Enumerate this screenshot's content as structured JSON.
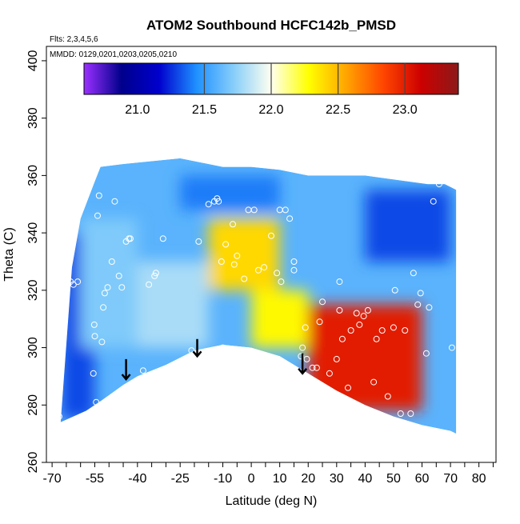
{
  "chart_data": {
    "type": "heatmap",
    "title": "ATOM2 Southbound HCFC142b_PMSD",
    "subtitle_flights": "Flts: 2,3,4,5,6",
    "subtitle_dates": "MMDD: 0129,0201,0203,0205,0210",
    "xlabel": "Latitude (deg N)",
    "ylabel": "Theta (C)",
    "xlim": [
      -72,
      86
    ],
    "ylim": [
      260,
      405
    ],
    "x_ticks": [
      -70,
      -65,
      -60,
      -55,
      -50,
      -45,
      -40,
      -35,
      -30,
      -25,
      -20,
      -15,
      -10,
      -5,
      0,
      5,
      10,
      15,
      20,
      25,
      30,
      35,
      40,
      45,
      50,
      55,
      60,
      65,
      70,
      75,
      80,
      85
    ],
    "x_tick_labels": [
      "-70",
      "",
      "",
      "-55",
      "",
      "",
      "-40",
      "",
      "",
      "-25",
      "",
      "",
      "-10",
      "",
      "0",
      "",
      "10",
      "",
      "20",
      "",
      "30",
      "",
      "40",
      "",
      "50",
      "",
      "60",
      "",
      "70",
      "",
      "80",
      ""
    ],
    "y_ticks": [
      260,
      280,
      300,
      320,
      340,
      360,
      380,
      400
    ],
    "y_tick_labels": [
      "260",
      "280",
      "300",
      "320",
      "340",
      "360",
      "380",
      "400"
    ],
    "colorbar": {
      "range": [
        20.6,
        23.4
      ],
      "ticks": [
        21.0,
        21.5,
        22.0,
        22.5,
        23.0
      ],
      "tick_labels": [
        "21.0",
        "21.5",
        "22.0",
        "22.5",
        "23.0"
      ],
      "divider_values": [
        21.5,
        22.0,
        22.5,
        23.0
      ],
      "colors": [
        "#9b30ff",
        "#00008b",
        "#0000cd",
        "#1e90ff",
        "#87cefa",
        "#fffff0",
        "#ffff00",
        "#ffa500",
        "#ff4500",
        "#cd0000",
        "#8b1a1a"
      ]
    },
    "field_regions": [
      {
        "x": [
          -67,
          -55
        ],
        "y": [
          275,
          340
        ],
        "value": 21.3
      },
      {
        "x": [
          -60,
          -40
        ],
        "y": [
          300,
          345
        ],
        "value": 21.7
      },
      {
        "x": [
          -40,
          -15
        ],
        "y": [
          300,
          330
        ],
        "value": 21.8
      },
      {
        "x": [
          -15,
          10
        ],
        "y": [
          320,
          345
        ],
        "value": 22.4
      },
      {
        "x": [
          0,
          20
        ],
        "y": [
          300,
          320
        ],
        "value": 22.3
      },
      {
        "x": [
          20,
          60
        ],
        "y": [
          278,
          315
        ],
        "value": 23.0
      },
      {
        "x": [
          40,
          70
        ],
        "y": [
          330,
          355
        ],
        "value": 21.3
      },
      {
        "x": [
          -25,
          10
        ],
        "y": [
          348,
          360
        ],
        "value": 21.4
      }
    ],
    "observation_points": [
      [
        -67.5,
        276
      ],
      [
        -67.0,
        297
      ],
      [
        -66.5,
        331
      ],
      [
        -66.0,
        337
      ],
      [
        -65.8,
        334
      ],
      [
        -63.5,
        323
      ],
      [
        -62.5,
        322
      ],
      [
        -61.0,
        323
      ],
      [
        -55.5,
        291
      ],
      [
        -55.2,
        308
      ],
      [
        -55.0,
        304
      ],
      [
        -54.5,
        281
      ],
      [
        -54.0,
        346
      ],
      [
        -53.5,
        353
      ],
      [
        -52.5,
        302
      ],
      [
        -52.0,
        314
      ],
      [
        -51.5,
        319
      ],
      [
        -50.5,
        321
      ],
      [
        -49.0,
        330
      ],
      [
        -48.0,
        351
      ],
      [
        -46.5,
        325
      ],
      [
        -45.5,
        321
      ],
      [
        -44.0,
        337
      ],
      [
        -43.0,
        338
      ],
      [
        -42.5,
        338
      ],
      [
        -38.0,
        292
      ],
      [
        -36.0,
        322
      ],
      [
        -34.0,
        325
      ],
      [
        -33.5,
        326
      ],
      [
        -31.0,
        338
      ],
      [
        -21.0,
        299
      ],
      [
        -18.5,
        337
      ],
      [
        -15.0,
        350
      ],
      [
        -13.0,
        351
      ],
      [
        -12.0,
        352
      ],
      [
        -11.5,
        351
      ],
      [
        -10.5,
        330
      ],
      [
        -10.0,
        300
      ],
      [
        -9.0,
        336
      ],
      [
        -6.5,
        343
      ],
      [
        -6.0,
        329
      ],
      [
        -5.0,
        332
      ],
      [
        -2.5,
        324
      ],
      [
        -1.0,
        348
      ],
      [
        1.0,
        348
      ],
      [
        2.5,
        327
      ],
      [
        4.5,
        328
      ],
      [
        7.0,
        339
      ],
      [
        9.0,
        326
      ],
      [
        10.0,
        348
      ],
      [
        10.5,
        323
      ],
      [
        12.0,
        348
      ],
      [
        13.5,
        345
      ],
      [
        15.0,
        330
      ],
      [
        15.0,
        327
      ],
      [
        17.5,
        297
      ],
      [
        18.0,
        300
      ],
      [
        19.0,
        307
      ],
      [
        19.5,
        296
      ],
      [
        21.5,
        293
      ],
      [
        23.0,
        293
      ],
      [
        24.0,
        309
      ],
      [
        25.0,
        316
      ],
      [
        27.5,
        291
      ],
      [
        30.0,
        296
      ],
      [
        31.0,
        313
      ],
      [
        31.0,
        323
      ],
      [
        32.0,
        303
      ],
      [
        34.0,
        286
      ],
      [
        35.0,
        306
      ],
      [
        37.0,
        312
      ],
      [
        38.0,
        308
      ],
      [
        39.5,
        311
      ],
      [
        41.0,
        313
      ],
      [
        43.0,
        288
      ],
      [
        44.0,
        303
      ],
      [
        46.0,
        306
      ],
      [
        48.0,
        283
      ],
      [
        50.0,
        307
      ],
      [
        50.5,
        320
      ],
      [
        52.5,
        277
      ],
      [
        54.0,
        306
      ],
      [
        56.0,
        277
      ],
      [
        57.0,
        326
      ],
      [
        58.5,
        315
      ],
      [
        59.5,
        319
      ],
      [
        61.5,
        298
      ],
      [
        62.5,
        314
      ],
      [
        64.0,
        351
      ],
      [
        66.0,
        357
      ],
      [
        70.5,
        300
      ]
    ],
    "arrows": [
      {
        "x": -44,
        "y_top": 296,
        "y_bottom": 289
      },
      {
        "x": -19,
        "y_top": 303,
        "y_bottom": 297
      },
      {
        "x": 18,
        "y_top": 298,
        "y_bottom": 291
      }
    ]
  }
}
